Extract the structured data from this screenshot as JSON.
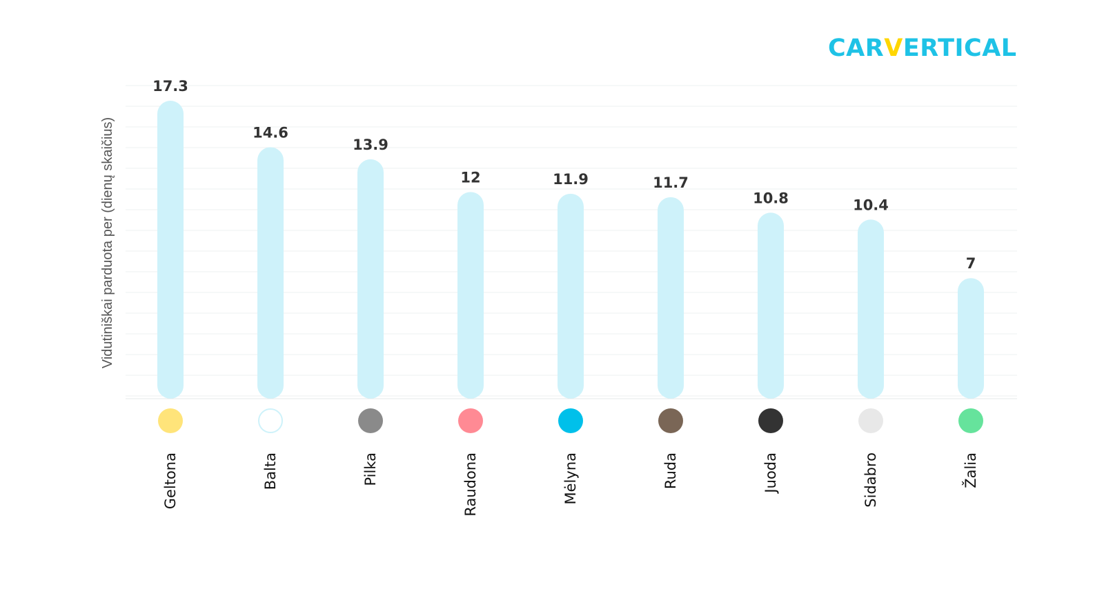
{
  "brand": {
    "logo_part1": "CAR",
    "logo_v": "V",
    "logo_part2": "ERTICAL",
    "primary_color": "#1ec2e6",
    "accent_color": "#ffd600"
  },
  "chart_data": {
    "type": "bar",
    "ylabel": "Vidutiniškai parduota per (dienų skaičius)",
    "xlabel": "",
    "ylim": [
      0,
      18
    ],
    "grid": true,
    "bar_color": "#cef2fa",
    "categories": [
      "Geltona",
      "Balta",
      "Pilka",
      "Raudona",
      "Mėlyna",
      "Ruda",
      "Juoda",
      "Sidabro",
      "Žalia"
    ],
    "values": [
      17.3,
      14.6,
      13.9,
      12,
      11.9,
      11.7,
      10.8,
      10.4,
      7
    ],
    "value_labels": [
      "17.3",
      "14.6",
      "13.9",
      "12",
      "11.9",
      "11.7",
      "10.8",
      "10.4",
      "7"
    ],
    "swatch_colors": [
      "#ffe47a",
      "#ffffff",
      "#8a8a8a",
      "#ff8a94",
      "#00c0ea",
      "#7a6656",
      "#333333",
      "#e8e8e8",
      "#66e39c"
    ],
    "swatch_borders": [
      "none",
      "#cef2fa",
      "none",
      "none",
      "none",
      "none",
      "none",
      "none",
      "none"
    ]
  }
}
